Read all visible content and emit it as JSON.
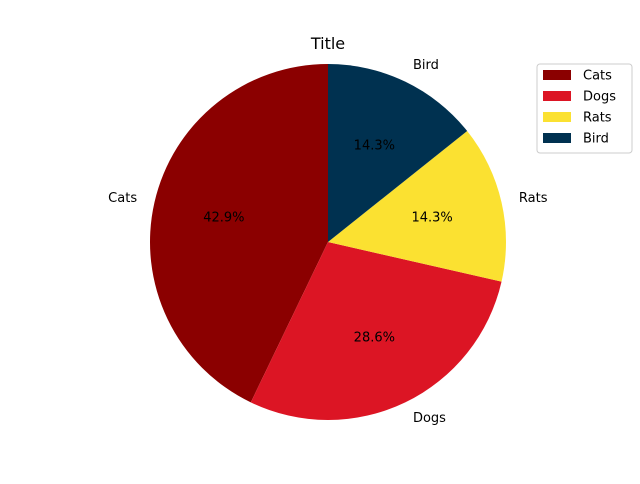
{
  "chart_data": {
    "type": "pie",
    "title": "Title",
    "categories": [
      "Cats",
      "Dogs",
      "Rats",
      "Bird"
    ],
    "values": [
      3,
      2,
      1,
      1
    ],
    "percent_labels": [
      "42.9%",
      "28.6%",
      "14.3%",
      "14.3%"
    ],
    "colors": [
      "#8b0000",
      "#dc1524",
      "#fbe131",
      "#003150"
    ],
    "start_angle_deg": 90,
    "direction": "counterclockwise",
    "legend": {
      "position": "top-right",
      "entries": [
        "Cats",
        "Dogs",
        "Rats",
        "Bird"
      ]
    }
  }
}
